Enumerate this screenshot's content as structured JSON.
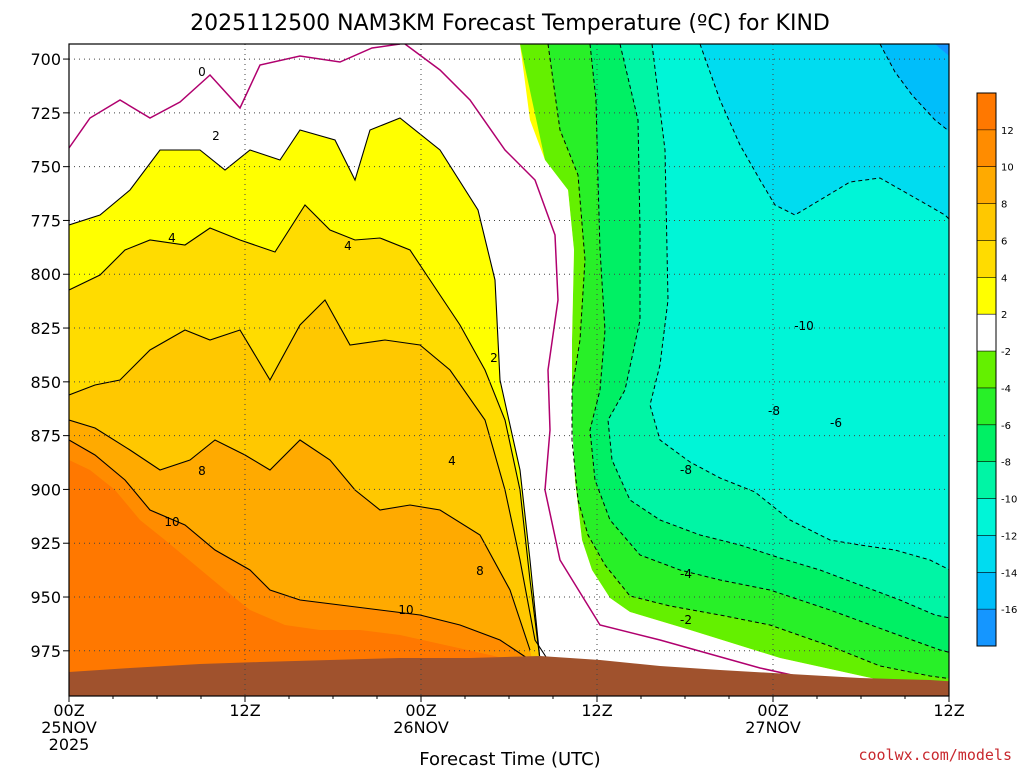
{
  "chart_data": {
    "type": "heatmap",
    "title": "2025112500 NAM3KM Forecast Temperature (ºC) for KIND",
    "xlabel": "Forecast Time (UTC)",
    "ylabel": "",
    "y_ticks": [
      "700",
      "725",
      "750",
      "775",
      "800",
      "825",
      "850",
      "875",
      "900",
      "925",
      "950",
      "975"
    ],
    "y_values": [
      700,
      725,
      750,
      775,
      800,
      825,
      850,
      875,
      900,
      925,
      950,
      975
    ],
    "ylim": [
      693,
      996
    ],
    "x_ticks": [
      {
        "hour": 0,
        "l1": "00Z",
        "l2": "25NOV",
        "l3": "2025"
      },
      {
        "hour": 12,
        "l1": "12Z",
        "l2": "",
        "l3": ""
      },
      {
        "hour": 24,
        "l1": "00Z",
        "l2": "26NOV",
        "l3": ""
      },
      {
        "hour": 36,
        "l1": "12Z",
        "l2": "",
        "l3": ""
      },
      {
        "hour": 48,
        "l1": "00Z",
        "l2": "27NOV",
        "l3": ""
      },
      {
        "hour": 60,
        "l1": "12Z",
        "l2": "",
        "l3": ""
      }
    ],
    "xlim": [
      0,
      60
    ],
    "colorbar": {
      "labels": [
        "12",
        "10",
        "8",
        "6",
        "4",
        "2",
        "-2",
        "-4",
        "-6",
        "-8",
        "-10",
        "-12",
        "-14",
        "-16"
      ],
      "levels": [
        -18,
        -16,
        -14,
        -12,
        -10,
        -8,
        -6,
        -4,
        -2,
        2,
        4,
        6,
        8,
        10,
        12,
        14
      ],
      "colors": [
        "#1596ff",
        "#00befa",
        "#00dcf0",
        "#00f5d7",
        "#00f5a5",
        "#00f064",
        "#28f028",
        "#64f000",
        "#ffffff",
        "#ffff00",
        "#ffdc00",
        "#ffc800",
        "#ffaa00",
        "#ff8c00",
        "#ff7800"
      ]
    },
    "contour_labels": [
      "0",
      "2",
      "4",
      "4",
      "8",
      "10",
      "4",
      "2",
      "8",
      "10",
      "-2",
      "-4",
      "-8",
      "-10",
      "-8",
      "-6"
    ],
    "watermark": "coolwx.com/models"
  }
}
